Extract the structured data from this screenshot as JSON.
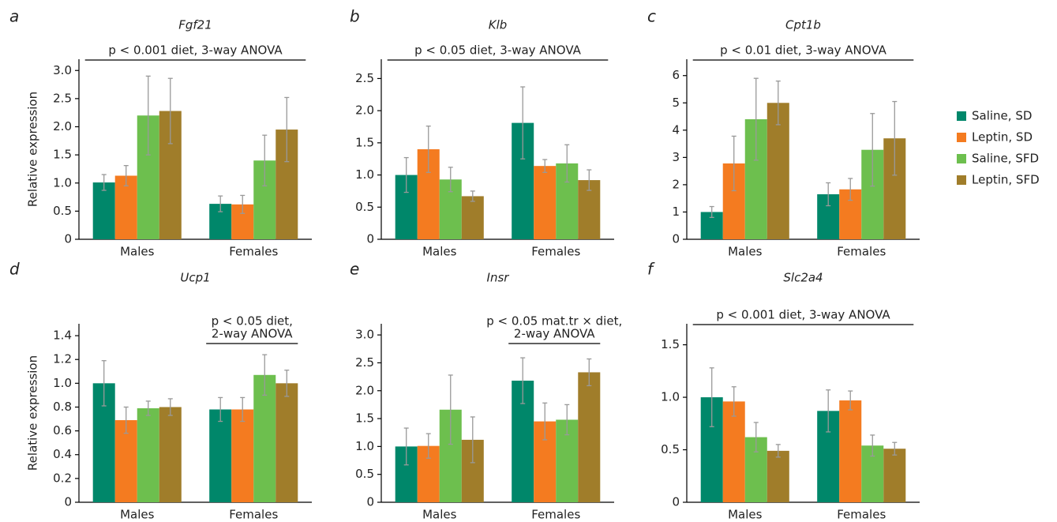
{
  "legend": [
    {
      "name": "Saline, SD",
      "color": "#00876a"
    },
    {
      "name": "Leptin, SD",
      "color": "#f47b20"
    },
    {
      "name": "Saline, SFD",
      "color": "#6dbf4e"
    },
    {
      "name": "Leptin, SFD",
      "color": "#a07d2a"
    }
  ],
  "chart_data": [
    {
      "type": "bar",
      "label": "a",
      "title": "Fgf21",
      "y_label": "Relative expression",
      "annotation": [
        "p < 0.001 diet, 3-way ANOVA"
      ],
      "categories": [
        "Males",
        "Females"
      ],
      "ylim": [
        0,
        3.2
      ],
      "yticks": [
        0,
        0.5,
        {
          "value": 1,
          "label": "1.0"
        },
        1.5,
        {
          "value": 2,
          "label": "2.0"
        },
        2.5,
        {
          "value": 3,
          "label": "3.0"
        }
      ],
      "series": [
        {
          "values": [
            1.01,
            0.63
          ],
          "errors": [
            0.14,
            0.14
          ]
        },
        {
          "values": [
            1.13,
            0.62
          ],
          "errors": [
            0.18,
            0.16
          ]
        },
        {
          "values": [
            2.2,
            1.4
          ],
          "errors": [
            0.7,
            0.45
          ]
        },
        {
          "values": [
            2.28,
            1.95
          ],
          "errors": [
            0.58,
            0.57
          ]
        }
      ]
    },
    {
      "type": "bar",
      "label": "b",
      "title": "Klb",
      "annotation": [
        "p < 0.05 diet, 3-way ANOVA"
      ],
      "categories": [
        "Males",
        "Females"
      ],
      "ylim": [
        0,
        2.8
      ],
      "yticks": [
        0,
        0.5,
        {
          "value": 1,
          "label": "1.0"
        },
        1.5,
        {
          "value": 2,
          "label": "2.0"
        },
        2.5
      ],
      "series": [
        {
          "values": [
            1.0,
            1.81
          ],
          "errors": [
            0.27,
            0.56
          ]
        },
        {
          "values": [
            1.4,
            1.14
          ],
          "errors": [
            0.36,
            0.1
          ]
        },
        {
          "values": [
            0.93,
            1.18
          ],
          "errors": [
            0.19,
            0.29
          ]
        },
        {
          "values": [
            0.67,
            0.92
          ],
          "errors": [
            0.08,
            0.16
          ]
        }
      ]
    },
    {
      "type": "bar",
      "label": "c",
      "title": "Cpt1b",
      "annotation": [
        "p < 0.01 diet, 3-way ANOVA"
      ],
      "categories": [
        "Males",
        "Females"
      ],
      "ylim": [
        0,
        6.6
      ],
      "yticks": [
        0,
        1,
        2,
        3,
        4,
        5,
        6
      ],
      "series": [
        {
          "values": [
            1.0,
            1.65
          ],
          "errors": [
            0.2,
            0.42
          ]
        },
        {
          "values": [
            2.78,
            1.83
          ],
          "errors": [
            1.0,
            0.4
          ]
        },
        {
          "values": [
            4.4,
            3.28
          ],
          "errors": [
            1.5,
            1.33
          ]
        },
        {
          "values": [
            5.0,
            3.7
          ],
          "errors": [
            0.8,
            1.35
          ]
        }
      ]
    },
    {
      "type": "bar",
      "label": "d",
      "title": "Ucp1",
      "y_label": "Relative expression",
      "annotation": [
        "p < 0.05 diet,",
        "2-way ANOVA"
      ],
      "categories": [
        "Males",
        "Females"
      ],
      "ylim": [
        0,
        1.5
      ],
      "yticks": [
        0,
        0.2,
        0.4,
        0.6,
        0.8,
        {
          "value": 1,
          "label": "1.0"
        },
        1.2,
        1.4
      ],
      "series": [
        {
          "values": [
            1.0,
            0.78
          ],
          "errors": [
            0.19,
            0.1
          ]
        },
        {
          "values": [
            0.69,
            0.78
          ],
          "errors": [
            0.11,
            0.1
          ]
        },
        {
          "values": [
            0.79,
            1.07
          ],
          "errors": [
            0.06,
            0.17
          ]
        },
        {
          "values": [
            0.8,
            1.0
          ],
          "errors": [
            0.07,
            0.11
          ]
        }
      ]
    },
    {
      "type": "bar",
      "label": "e",
      "title": "Insr",
      "annotation": [
        "p < 0.05 mat.tr × diet,",
        "2-way ANOVA"
      ],
      "categories": [
        "Males",
        "Females"
      ],
      "ylim": [
        0,
        3.2
      ],
      "yticks": [
        0,
        0.5,
        {
          "value": 1,
          "label": "1.0"
        },
        1.5,
        {
          "value": 2,
          "label": "2.0"
        },
        2.5,
        {
          "value": 3,
          "label": "3.0"
        }
      ],
      "series": [
        {
          "values": [
            1.0,
            2.18
          ],
          "errors": [
            0.33,
            0.41
          ]
        },
        {
          "values": [
            1.01,
            1.45
          ],
          "errors": [
            0.22,
            0.33
          ]
        },
        {
          "values": [
            1.66,
            1.48
          ],
          "errors": [
            0.62,
            0.27
          ]
        },
        {
          "values": [
            1.12,
            2.33
          ],
          "errors": [
            0.41,
            0.24
          ]
        }
      ]
    },
    {
      "type": "bar",
      "label": "f",
      "title": "Slc2a4",
      "annotation": [
        "p < 0.001 diet, 3-way ANOVA"
      ],
      "categories": [
        "Males",
        "Females"
      ],
      "ylim": [
        0,
        1.7
      ],
      "yticks": [
        0,
        0.5,
        {
          "value": 1,
          "label": "1.0"
        },
        1.5
      ],
      "series": [
        {
          "values": [
            1.0,
            0.87
          ],
          "errors": [
            0.28,
            0.2
          ]
        },
        {
          "values": [
            0.96,
            0.97
          ],
          "errors": [
            0.14,
            0.09
          ]
        },
        {
          "values": [
            0.62,
            0.54
          ],
          "errors": [
            0.14,
            0.1
          ]
        },
        {
          "values": [
            0.49,
            0.51
          ],
          "errors": [
            0.06,
            0.06
          ]
        }
      ]
    }
  ]
}
